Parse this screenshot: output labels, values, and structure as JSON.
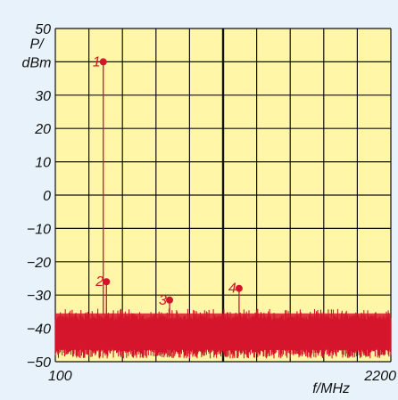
{
  "chart_data": {
    "type": "line",
    "title": "",
    "xlabel": "f/MHz",
    "ylabel_line1": "P/",
    "ylabel_line2": "dBm",
    "xlim": [
      100,
      2200
    ],
    "ylim": [
      -50,
      50
    ],
    "x_tick_labels": [
      "100",
      "2200"
    ],
    "y_ticks": [
      50,
      40,
      30,
      20,
      10,
      0,
      -10,
      -20,
      -30,
      -40,
      -50
    ],
    "y_tick_labels": [
      "50",
      "",
      "30",
      "20",
      "10",
      "0",
      "−10",
      "−20",
      "−30",
      "−40",
      "−50"
    ],
    "grid": true,
    "x_divisions": 10,
    "colors": {
      "background": "#e7f2fb",
      "plot_area": "#fff6a8",
      "grid": "#111111",
      "trace": "#d3152b"
    },
    "noise_floor": {
      "min": -49,
      "max": -35,
      "typical_top": -36
    },
    "markers": [
      {
        "label": "1",
        "x": 400,
        "y": 40
      },
      {
        "label": "2",
        "x": 420,
        "y": -26
      },
      {
        "label": "3",
        "x": 815,
        "y": -31.5
      },
      {
        "label": "4",
        "x": 1250,
        "y": -28
      }
    ]
  }
}
